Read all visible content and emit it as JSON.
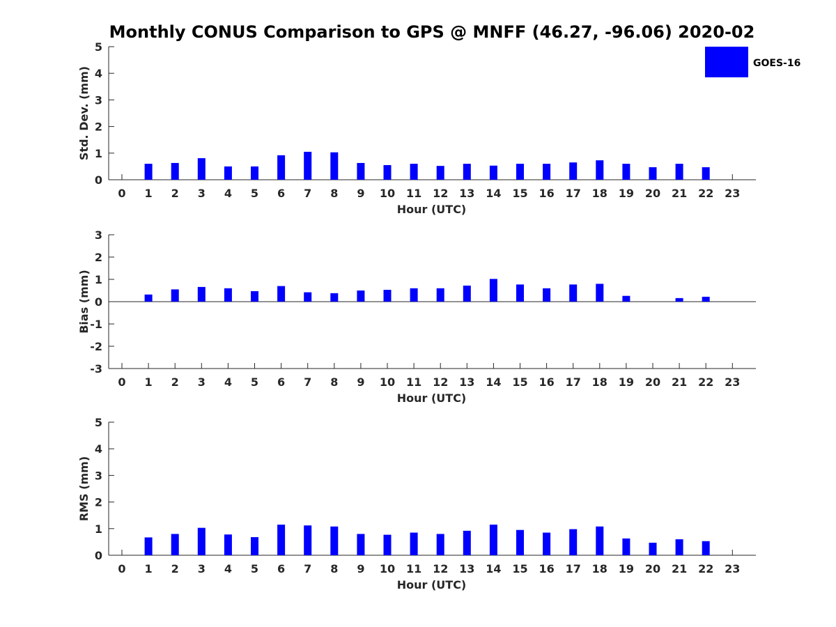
{
  "figure": {
    "title": "Monthly CONUS Comparison to GPS @ MNFF (46.27, -96.06) 2020-02",
    "legend_label": "GOES-16",
    "bar_color": "#0000ff"
  },
  "chart_data": [
    {
      "type": "bar",
      "id": "std",
      "title": "Monthly CONUS Comparison to GPS @ MNFF (46.27, -96.06) 2020-02",
      "xlabel": "Hour (UTC)",
      "ylabel": "Std. Dev. (mm)",
      "ylim": [
        0,
        5
      ],
      "yticks": [
        0,
        1,
        2,
        3,
        4,
        5
      ],
      "categories": [
        0,
        1,
        2,
        3,
        4,
        5,
        6,
        7,
        8,
        9,
        10,
        11,
        12,
        13,
        14,
        15,
        16,
        17,
        18,
        19,
        20,
        21,
        22,
        23
      ],
      "series": [
        {
          "name": "GOES-16",
          "values": [
            null,
            0.6,
            0.63,
            0.81,
            0.5,
            0.5,
            0.92,
            1.05,
            1.03,
            0.63,
            0.55,
            0.6,
            0.52,
            0.6,
            0.53,
            0.6,
            0.6,
            0.65,
            0.73,
            0.6,
            0.47,
            0.6,
            0.47,
            null
          ]
        }
      ]
    },
    {
      "type": "bar",
      "id": "bias",
      "xlabel": "Hour (UTC)",
      "ylabel": "Bias (mm)",
      "ylim": [
        -3,
        3
      ],
      "yticks": [
        -3,
        -2,
        -1,
        0,
        1,
        2,
        3
      ],
      "categories": [
        0,
        1,
        2,
        3,
        4,
        5,
        6,
        7,
        8,
        9,
        10,
        11,
        12,
        13,
        14,
        15,
        16,
        17,
        18,
        19,
        20,
        21,
        22,
        23
      ],
      "series": [
        {
          "name": "GOES-16",
          "values": [
            null,
            0.32,
            0.55,
            0.66,
            0.6,
            0.47,
            0.7,
            0.42,
            0.38,
            0.5,
            0.53,
            0.6,
            0.6,
            0.72,
            1.02,
            0.77,
            0.6,
            0.77,
            0.8,
            0.26,
            null,
            0.16,
            0.22,
            null
          ]
        }
      ]
    },
    {
      "type": "bar",
      "id": "rms",
      "xlabel": "Hour (UTC)",
      "ylabel": "RMS (mm)",
      "ylim": [
        0,
        5
      ],
      "yticks": [
        0,
        1,
        2,
        3,
        4,
        5
      ],
      "categories": [
        0,
        1,
        2,
        3,
        4,
        5,
        6,
        7,
        8,
        9,
        10,
        11,
        12,
        13,
        14,
        15,
        16,
        17,
        18,
        19,
        20,
        21,
        22,
        23
      ],
      "series": [
        {
          "name": "GOES-16",
          "values": [
            null,
            0.67,
            0.8,
            1.03,
            0.78,
            0.68,
            1.15,
            1.12,
            1.08,
            0.8,
            0.77,
            0.85,
            0.8,
            0.92,
            1.15,
            0.95,
            0.85,
            0.98,
            1.08,
            0.63,
            0.47,
            0.6,
            0.53,
            null
          ]
        }
      ]
    }
  ]
}
